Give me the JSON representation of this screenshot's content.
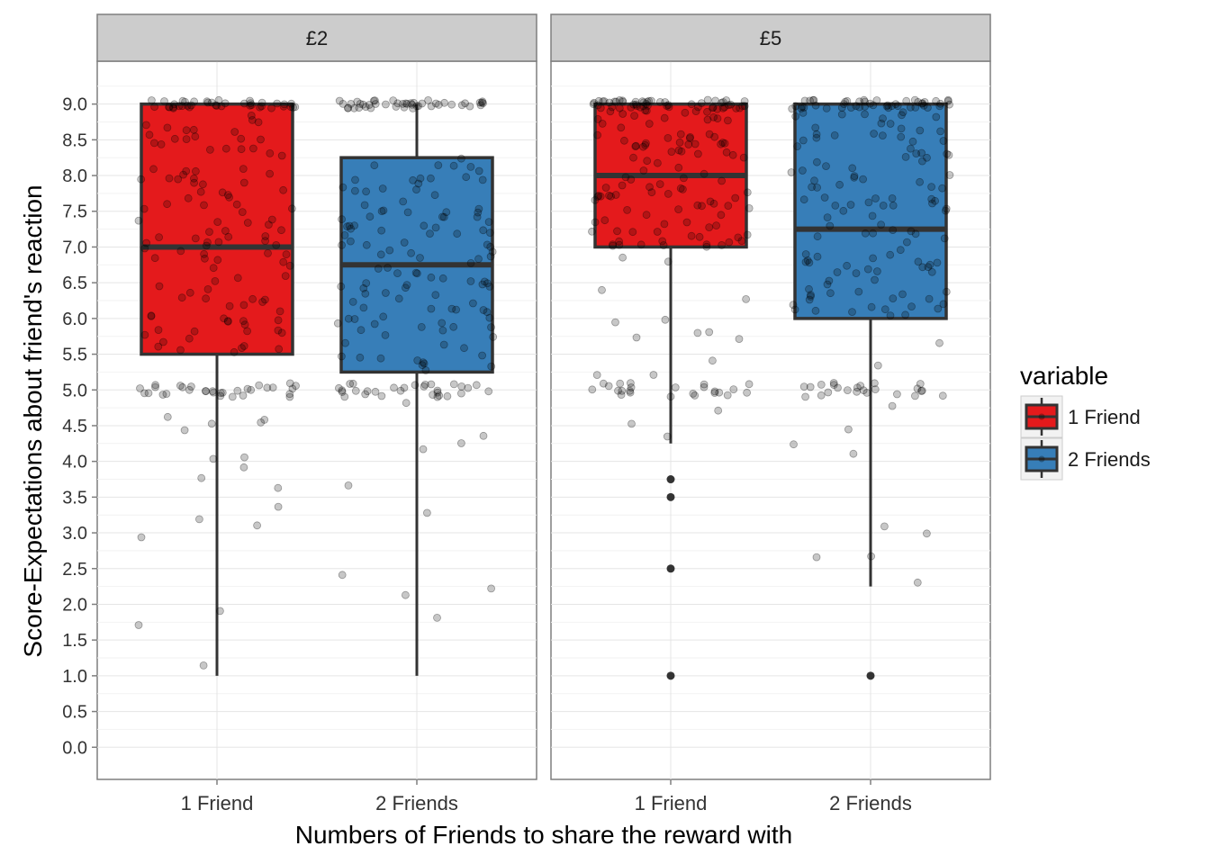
{
  "chart_data": {
    "type": "boxplot",
    "xlabel": "Numbers of Friends to share the reward with",
    "ylabel": "Score-Expectations about friend's reaction",
    "ylim": [
      -0.45,
      9.6
    ],
    "y_ticks": [
      "0.0",
      "0.5",
      "1.0",
      "1.5",
      "2.0",
      "2.5",
      "3.0",
      "3.5",
      "4.0",
      "4.5",
      "5.0",
      "5.5",
      "6.0",
      "6.5",
      "7.0",
      "7.5",
      "8.0",
      "8.5",
      "9.0"
    ],
    "categories": [
      "1 Friend",
      "2 Friends"
    ],
    "grid": true,
    "legend": {
      "title": "variable",
      "position": "right",
      "entries": [
        "1 Friend",
        "2 Friends"
      ]
    },
    "colors": {
      "1 Friend": "#e41a1c",
      "2 Friends": "#377eb8",
      "outline": "#333333"
    },
    "panels": [
      {
        "title": "£2",
        "boxes": [
          {
            "category": "1 Friend",
            "min": 1.0,
            "q1": 5.5,
            "median": 7.0,
            "q3": 9.0,
            "max": 9.0,
            "outliers": []
          },
          {
            "category": "2 Friends",
            "min": 1.0,
            "q1": 5.25,
            "median": 6.75,
            "q3": 8.25,
            "max": 9.0,
            "outliers": []
          }
        ]
      },
      {
        "title": "£5",
        "boxes": [
          {
            "category": "1 Friend",
            "min": 4.25,
            "q1": 7.0,
            "median": 8.0,
            "q3": 9.0,
            "max": 9.0,
            "outliers": [
              1.0,
              2.5,
              3.5,
              3.75
            ]
          },
          {
            "category": "2 Friends",
            "min": 2.25,
            "q1": 6.0,
            "median": 7.25,
            "q3": 9.0,
            "max": 9.0,
            "outliers": [
              1.0
            ]
          }
        ]
      }
    ]
  }
}
